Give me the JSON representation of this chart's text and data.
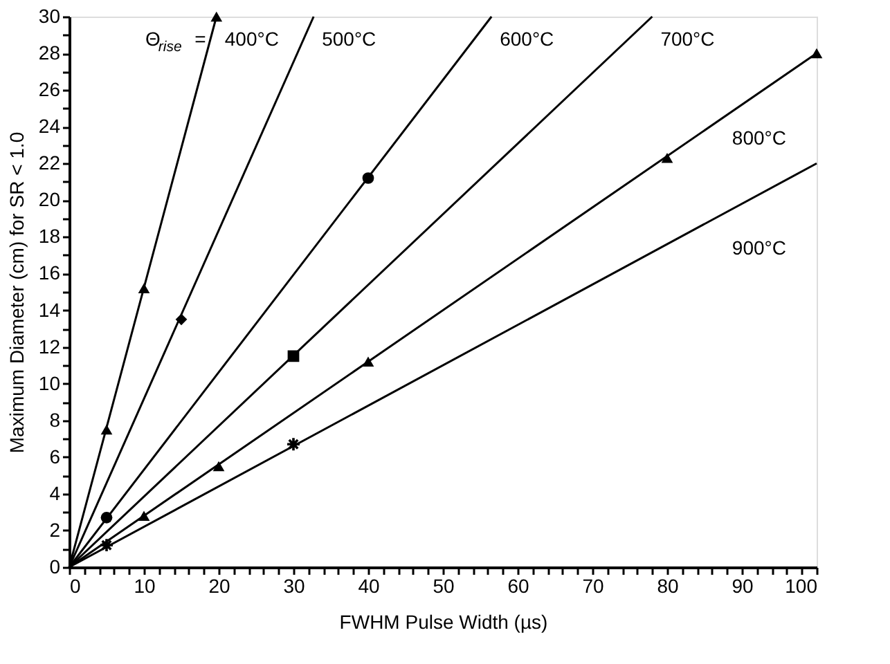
{
  "chart_data": {
    "type": "line",
    "xlabel": "FWHM Pulse Width (µs)",
    "ylabel": "Maximum Diameter (cm) for SR < 1.0",
    "xlim": [
      0,
      100
    ],
    "ylim": [
      0,
      30
    ],
    "xticks": [
      0,
      {
        "value": 2,
        "label": null
      },
      {
        "value": 4,
        "label": null
      },
      {
        "value": 6,
        "label": null
      },
      {
        "value": 8,
        "label": null
      },
      10,
      {
        "value": 12,
        "label": null
      },
      {
        "value": 14,
        "label": null
      },
      {
        "value": 16,
        "label": null
      },
      {
        "value": 18,
        "label": null
      },
      20,
      {
        "value": 22,
        "label": null
      },
      {
        "value": 24,
        "label": null
      },
      {
        "value": 26,
        "label": null
      },
      {
        "value": 28,
        "label": null
      },
      30,
      {
        "value": 32,
        "label": null
      },
      {
        "value": 34,
        "label": null
      },
      {
        "value": 36,
        "label": null
      },
      {
        "value": 38,
        "label": null
      },
      40,
      {
        "value": 42,
        "label": null
      },
      {
        "value": 44,
        "label": null
      },
      {
        "value": 46,
        "label": null
      },
      {
        "value": 48,
        "label": null
      },
      50,
      {
        "value": 52,
        "label": null
      },
      {
        "value": 54,
        "label": null
      },
      {
        "value": 56,
        "label": null
      },
      {
        "value": 58,
        "label": null
      },
      60,
      {
        "value": 62,
        "label": null
      },
      {
        "value": 64,
        "label": null
      },
      {
        "value": 66,
        "label": null
      },
      {
        "value": 68,
        "label": null
      },
      70,
      {
        "value": 72,
        "label": null
      },
      {
        "value": 74,
        "label": null
      },
      {
        "value": 76,
        "label": null
      },
      {
        "value": 78,
        "label": null
      },
      80,
      {
        "value": 82,
        "label": null
      },
      {
        "value": 84,
        "label": null
      },
      {
        "value": 86,
        "label": null
      },
      {
        "value": 88,
        "label": null
      },
      90,
      {
        "value": 92,
        "label": null
      },
      {
        "value": 94,
        "label": null
      },
      {
        "value": 96,
        "label": null
      },
      {
        "value": 98,
        "label": null
      },
      100
    ],
    "yticks": [
      0,
      {
        "value": 1,
        "label": null
      },
      2,
      {
        "value": 3,
        "label": null
      },
      4,
      {
        "value": 5,
        "label": null
      },
      6,
      {
        "value": 7,
        "label": null
      },
      8,
      {
        "value": 9,
        "label": null
      },
      10,
      {
        "value": 11,
        "label": null
      },
      12,
      {
        "value": 13,
        "label": null
      },
      14,
      {
        "value": 15,
        "label": null
      },
      16,
      {
        "value": 17,
        "label": null
      },
      18,
      {
        "value": 19,
        "label": null
      },
      20,
      {
        "value": 21,
        "label": null
      },
      22,
      {
        "value": 23,
        "label": null
      },
      24,
      {
        "value": 25,
        "label": null
      },
      26,
      {
        "value": 27,
        "label": null
      },
      28,
      {
        "value": 29,
        "label": null
      },
      30
    ],
    "grid": false,
    "legend": false,
    "series": [
      {
        "name": "400°C",
        "color": "#000000",
        "marker": "none",
        "x": [
          0,
          19.7
        ],
        "values": [
          0,
          30
        ]
      },
      {
        "name": "500°C",
        "color": "#000000",
        "marker": "none",
        "x": [
          0,
          32.7
        ],
        "values": [
          0,
          30
        ]
      },
      {
        "name": "600°C",
        "color": "#000000",
        "marker": "none",
        "x": [
          0,
          56.5
        ],
        "values": [
          0,
          30
        ]
      },
      {
        "name": "700°C",
        "color": "#000000",
        "marker": "none",
        "x": [
          0,
          78
        ],
        "values": [
          0,
          30
        ]
      },
      {
        "name": "800°C",
        "color": "#000000",
        "marker": "none",
        "x": [
          0,
          100
        ],
        "values": [
          0,
          28
        ]
      },
      {
        "name": "900°C",
        "color": "#000000",
        "marker": "none",
        "x": [
          0,
          100
        ],
        "values": [
          0,
          22
        ]
      },
      {
        "type": "scatter",
        "color": "#000000",
        "marker": "triangle",
        "x": [
          5,
          10,
          19.7
        ],
        "values": [
          7.5,
          15.2,
          30
        ]
      },
      {
        "type": "scatter",
        "color": "#000000",
        "marker": "diamond",
        "x": [
          15
        ],
        "values": [
          13.5
        ]
      },
      {
        "type": "scatter",
        "color": "#000000",
        "marker": "circle",
        "x": [
          5,
          40
        ],
        "values": [
          2.7,
          21.2
        ]
      },
      {
        "type": "scatter",
        "color": "#000000",
        "marker": "square",
        "x": [
          30
        ],
        "values": [
          11.5
        ]
      },
      {
        "type": "scatter",
        "color": "#000000",
        "marker": "triangle",
        "x": [
          10,
          20,
          40,
          80,
          100
        ],
        "values": [
          2.8,
          5.5,
          11.2,
          22.3,
          28
        ]
      },
      {
        "type": "scatter",
        "color": "#000000",
        "marker": "cross",
        "x": [
          5,
          30
        ],
        "values": [
          1.2,
          6.7
        ]
      }
    ],
    "annotations": [
      "Θ$_{rise}$ ="
    ]
  }
}
